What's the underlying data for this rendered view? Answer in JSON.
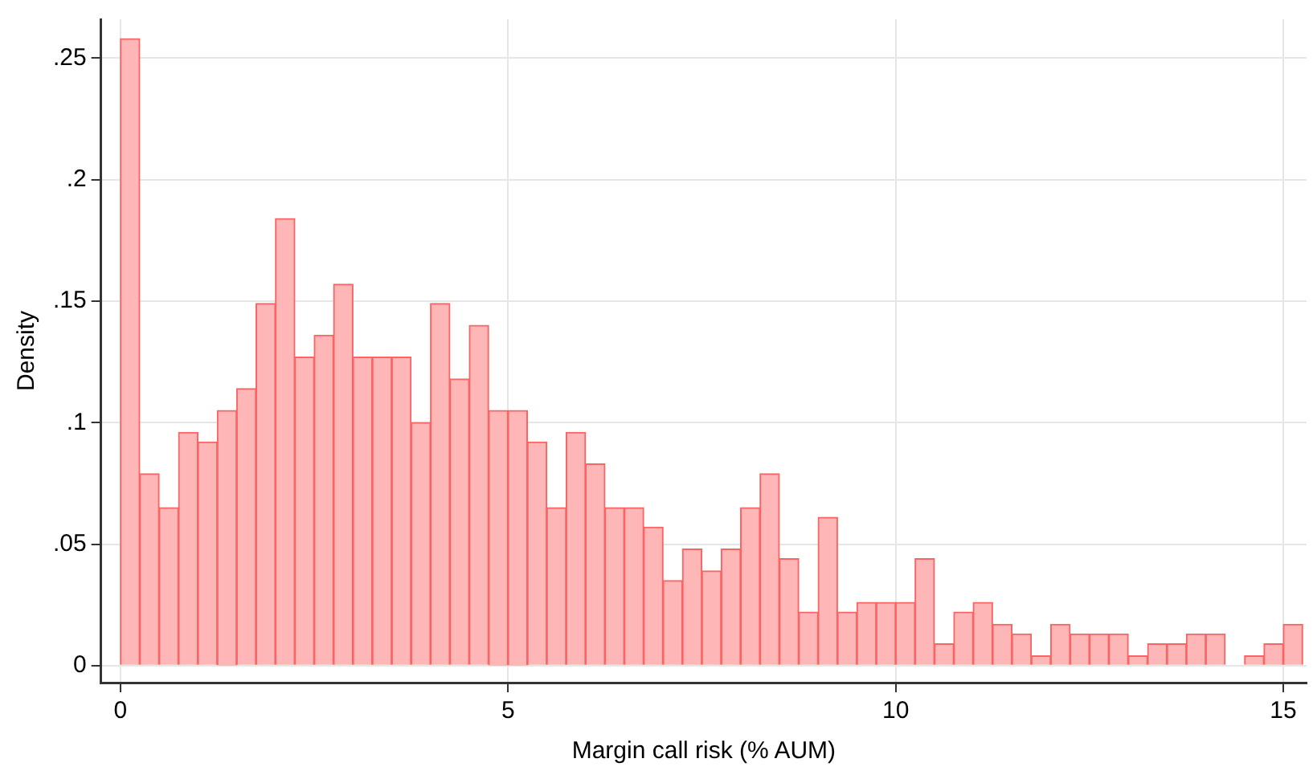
{
  "chart_data": {
    "type": "histogram",
    "xlabel": "Margin call risk (% AUM)",
    "ylabel": "Density",
    "bins": [
      0,
      0.25,
      0.5,
      0.75,
      1,
      1.25,
      1.5,
      1.75,
      2,
      2.25,
      2.5,
      2.75,
      3,
      3.25,
      3.5,
      3.75,
      4,
      4.25,
      4.5,
      4.75,
      5,
      5.25,
      5.5,
      5.75,
      6,
      6.25,
      6.5,
      6.75,
      7,
      7.25,
      7.5,
      7.75,
      8,
      8.25,
      8.5,
      8.75,
      9,
      9.25,
      9.5,
      9.75,
      10,
      10.25,
      10.5,
      10.75,
      11,
      11.25,
      11.5,
      11.75,
      12,
      12.25,
      12.5,
      12.75,
      13,
      13.25,
      13.5,
      13.75,
      14,
      14.25,
      14.5,
      14.75,
      15,
      15.25
    ],
    "values": [
      0.258,
      0.079,
      0.065,
      0.096,
      0.092,
      0.105,
      0.114,
      0.149,
      0.184,
      0.127,
      0.136,
      0.157,
      0.127,
      0.127,
      0.127,
      0.1,
      0.149,
      0.118,
      0.14,
      0.105,
      0.105,
      0.092,
      0.065,
      0.096,
      0.083,
      0.065,
      0.065,
      0.057,
      0.035,
      0.048,
      0.039,
      0.048,
      0.065,
      0.079,
      0.044,
      0.022,
      0.061,
      0.022,
      0.026,
      0.026,
      0.026,
      0.044,
      0.009,
      0.022,
      0.026,
      0.017,
      0.013,
      0.004,
      0.017,
      0.013,
      0.013,
      0.013,
      0.004,
      0.009,
      0.009,
      0.013,
      0.013,
      0,
      0.004,
      0.009,
      0.017
    ],
    "color": "#ffb6b6",
    "xlim": [
      -0.25,
      15.3
    ],
    "xticks": [
      0,
      5,
      10,
      15
    ],
    "ylim": [
      -0.007,
      0.266
    ],
    "yticks": [
      {
        "value": 0,
        "label": "0"
      },
      {
        "value": 0.05,
        "label": ".05"
      },
      {
        "value": 0.1,
        "label": ".1"
      },
      {
        "value": 0.15,
        "label": ".15"
      },
      {
        "value": 0.2,
        "label": ".2"
      },
      {
        "value": 0.25,
        "label": ".25"
      }
    ],
    "grid": true,
    "legend": false
  }
}
